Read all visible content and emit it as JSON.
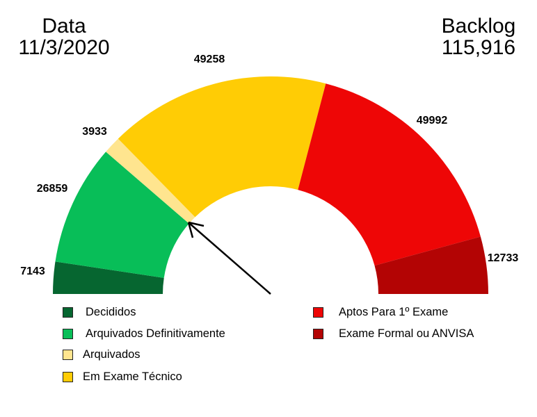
{
  "header": {
    "left_title": "Data",
    "left_value": "11/3/2020",
    "right_title": "Backlog",
    "right_value": "115,916"
  },
  "legend": {
    "items": [
      {
        "label": "Decididos",
        "color": "#066630"
      },
      {
        "label": "Arquivados Definitivamente",
        "color": "#08BE58"
      },
      {
        "label": "Arquivados",
        "color": "#FFE58F"
      },
      {
        "label": "Em Exame Técnico",
        "color": "#FFCC05"
      },
      {
        "label": "Aptos Para 1º Exame",
        "color": "#EE0606"
      },
      {
        "label": "Exame Formal ou ANVISA",
        "color": "#B30404"
      }
    ]
  },
  "chart_data": {
    "type": "gauge",
    "title": "",
    "annotations": [
      "Data 11/3/2020",
      "Backlog 115,916"
    ],
    "categories": [
      "Decididos",
      "Arquivados Definitivamente",
      "Arquivados",
      "Em Exame Técnico",
      "Aptos Para 1º Exame",
      "Exame Formal ou ANVISA"
    ],
    "values": [
      7143,
      26859,
      3933,
      49258,
      49992,
      12733
    ],
    "data_labels": [
      "7143",
      "26859",
      "3933",
      "49258",
      "49992",
      "12733"
    ],
    "colors": [
      "#066630",
      "#08BE58",
      "#FFE58F",
      "#FFCC05",
      "#EE0606",
      "#B30404"
    ],
    "total": 149918,
    "arc_degrees": 180,
    "needle": {
      "points_to_boundary_between": [
        "Arquivados Definitivamente",
        "Arquivados"
      ]
    },
    "legend_position": "bottom",
    "grid": false
  }
}
